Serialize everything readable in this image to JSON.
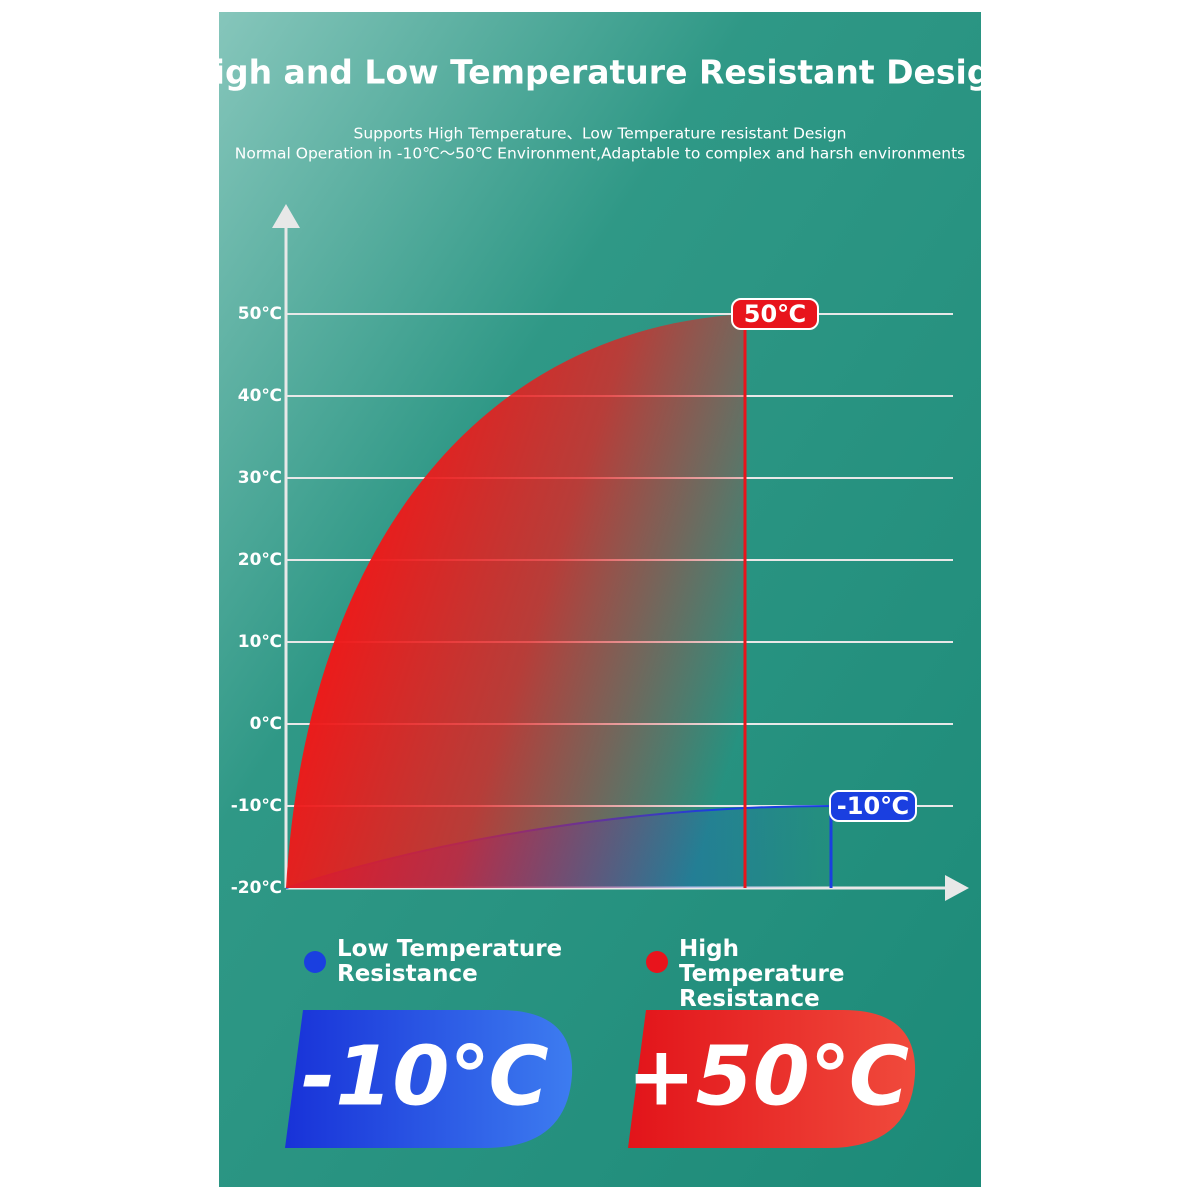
{
  "chart_data": {
    "type": "area",
    "title": "High and Low Temperature Resistant Design",
    "subtitle": [
      "Supports High Temperature、Low Temperature resistant Design",
      "Normal Operation in -10℃～50℃ Environment,Adaptable to complex and harsh environments"
    ],
    "ylim": [
      -20,
      50
    ],
    "yticks": [
      {
        "value": 50,
        "label": "50℃"
      },
      {
        "value": 40,
        "label": "40℃"
      },
      {
        "value": 30,
        "label": "30℃"
      },
      {
        "value": 20,
        "label": "20℃"
      },
      {
        "value": 10,
        "label": "10℃"
      },
      {
        "value": 0,
        "label": "0℃"
      },
      {
        "value": -10,
        "label": "-10℃"
      },
      {
        "value": -20,
        "label": "-20℃"
      }
    ],
    "grid": true,
    "series": [
      {
        "name": "Low Temperature Resistance",
        "color": "#1a3fe0",
        "values": [
          -10
        ],
        "value_labels": [
          "-10℃"
        ],
        "badge": "-10℃"
      },
      {
        "name": "High Temperature Resistance",
        "color": "#e8141c",
        "values": [
          50
        ],
        "value_labels": [
          "50℃"
        ],
        "badge": "+50℃"
      }
    ]
  }
}
